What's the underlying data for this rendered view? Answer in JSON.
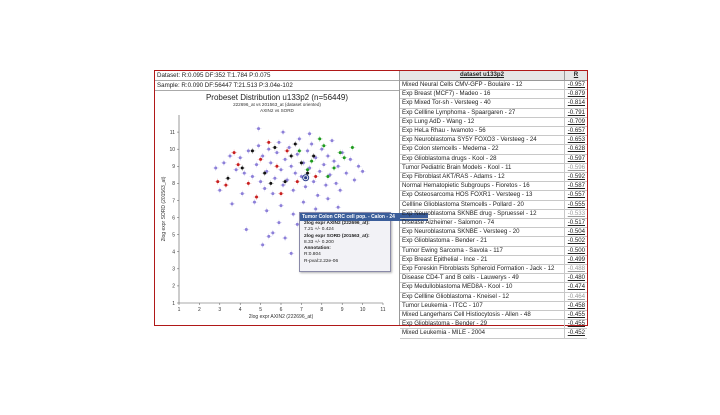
{
  "stats": {
    "dataset": "Dataset: R:0.095 DF:352 T:1.784 P:0.075",
    "sample": "Sample: R:0.090 DF:56447 T:21.513 P:3.04e-102"
  },
  "plot": {
    "title": "Probeset Distribution u133p2 (n=56449)",
    "subtitle1": "222696_at vs 201563_at (dataset oriented)",
    "subtitle2": "AXIN2 vs SORD"
  },
  "chart_data": {
    "type": "scatter",
    "xlabel": "2log expr AXIN2 (222696_at)",
    "ylabel": "2log expr SORD (201563_at)",
    "xlim": [
      1,
      11
    ],
    "ylim": [
      1,
      12
    ],
    "xticks": [
      "1",
      "2",
      "3",
      "4",
      "5",
      "6",
      "7",
      "8",
      "9",
      "10",
      "11"
    ],
    "yticks": [
      "1",
      "2",
      "3",
      "4",
      "5",
      "6",
      "7",
      "8",
      "9",
      "10",
      "11"
    ],
    "colors": {
      "bg": "#8c7fd8",
      "black": "#111111",
      "red": "#c81e1e",
      "green": "#1e9a1e",
      "highlight": "#2b3f8a"
    },
    "points_lavender": [
      [
        3.2,
        9.2
      ],
      [
        3.5,
        9.6
      ],
      [
        3.8,
        8.8
      ],
      [
        4.0,
        9.5
      ],
      [
        4.2,
        8.6
      ],
      [
        4.4,
        9.9
      ],
      [
        4.6,
        8.4
      ],
      [
        4.8,
        9.1
      ],
      [
        4.9,
        10.2
      ],
      [
        5.0,
        8.1
      ],
      [
        5.1,
        9.6
      ],
      [
        5.2,
        7.7
      ],
      [
        5.3,
        8.7
      ],
      [
        5.4,
        10.0
      ],
      [
        5.5,
        9.2
      ],
      [
        5.6,
        7.4
      ],
      [
        5.7,
        8.3
      ],
      [
        5.8,
        9.8
      ],
      [
        5.9,
        10.4
      ],
      [
        6.0,
        8.8
      ],
      [
        6.1,
        7.9
      ],
      [
        6.2,
        9.4
      ],
      [
        6.3,
        8.2
      ],
      [
        6.4,
        10.1
      ],
      [
        6.5,
        9.0
      ],
      [
        6.6,
        7.6
      ],
      [
        6.7,
        8.6
      ],
      [
        6.8,
        9.7
      ],
      [
        6.9,
        10.6
      ],
      [
        7.0,
        8.4
      ],
      [
        7.1,
        9.2
      ],
      [
        7.2,
        7.8
      ],
      [
        7.3,
        9.9
      ],
      [
        7.4,
        8.9
      ],
      [
        7.5,
        10.3
      ],
      [
        7.6,
        8.1
      ],
      [
        7.7,
        9.5
      ],
      [
        7.8,
        7.3
      ],
      [
        7.9,
        8.7
      ],
      [
        8.0,
        10.0
      ],
      [
        8.1,
        9.1
      ],
      [
        8.2,
        7.9
      ],
      [
        8.3,
        9.6
      ],
      [
        8.4,
        8.5
      ],
      [
        8.5,
        10.5
      ],
      [
        8.6,
        9.3
      ],
      [
        8.7,
        8.0
      ],
      [
        8.8,
        9.0
      ],
      [
        8.9,
        7.6
      ],
      [
        9.0,
        9.8
      ],
      [
        9.2,
        8.6
      ],
      [
        9.4,
        9.4
      ],
      [
        9.6,
        8.2
      ],
      [
        9.8,
        9.0
      ],
      [
        10.0,
        8.7
      ],
      [
        3.6,
        6.8
      ],
      [
        4.1,
        7.4
      ],
      [
        4.7,
        6.9
      ],
      [
        5.3,
        6.4
      ],
      [
        6.0,
        6.7
      ],
      [
        6.6,
        6.2
      ],
      [
        7.1,
        6.9
      ],
      [
        7.7,
        6.5
      ],
      [
        8.3,
        7.1
      ],
      [
        3.0,
        7.6
      ],
      [
        2.8,
        8.9
      ],
      [
        4.3,
        5.3
      ],
      [
        5.1,
        4.4
      ],
      [
        5.6,
        5.1
      ],
      [
        6.2,
        4.8
      ],
      [
        6.8,
        5.6
      ],
      [
        5.9,
        5.7
      ],
      [
        6.5,
        3.9
      ],
      [
        4.9,
        11.2
      ],
      [
        6.1,
        11.0
      ],
      [
        7.4,
        10.9
      ],
      [
        5.4,
        4.9
      ],
      [
        7.9,
        6.0
      ],
      [
        8.8,
        6.6
      ]
    ],
    "points_black": [
      [
        4.1,
        8.9
      ],
      [
        4.6,
        9.9
      ],
      [
        5.2,
        8.6
      ],
      [
        5.7,
        10.1
      ],
      [
        6.2,
        8.1
      ],
      [
        6.5,
        9.6
      ],
      [
        7.0,
        9.2
      ],
      [
        7.3,
        8.6
      ],
      [
        3.4,
        8.3
      ],
      [
        6.7,
        10.3
      ],
      [
        5.5,
        8.0
      ],
      [
        7.6,
        9.6
      ]
    ],
    "points_red": [
      [
        2.9,
        8.1
      ],
      [
        3.3,
        7.9
      ],
      [
        3.9,
        9.1
      ],
      [
        4.4,
        8.0
      ],
      [
        5.0,
        9.4
      ],
      [
        5.8,
        9.0
      ],
      [
        6.3,
        9.9
      ],
      [
        6.8,
        8.1
      ],
      [
        7.7,
        8.4
      ],
      [
        5.4,
        10.4
      ],
      [
        4.8,
        7.2
      ],
      [
        6.0,
        7.4
      ],
      [
        3.7,
        9.8
      ]
    ],
    "points_green": [
      [
        6.9,
        9.9
      ],
      [
        7.5,
        9.3
      ],
      [
        8.1,
        10.2
      ],
      [
        8.6,
        8.9
      ],
      [
        9.1,
        9.5
      ],
      [
        8.3,
        8.4
      ],
      [
        9.5,
        10.1
      ],
      [
        7.9,
        10.6
      ],
      [
        8.9,
        9.8
      ],
      [
        7.3,
        8.8
      ]
    ],
    "highlight_point": [
      7.21,
      8.33
    ]
  },
  "tooltip": {
    "header": "Tumor Colon CRC cell pop. - Calon - 24",
    "line1": "2log expr AXIN2 (222696_at):",
    "line2": "7.21 +/- 0.424",
    "line3": "2log expr SORD (201563_at):",
    "line4": "8.33 +/- 0.200",
    "line5": "Annotation:",
    "line6": "R:0.804",
    "line7": "R-pval:2.22e-06"
  },
  "table": {
    "header_dataset": "dataset u133p2",
    "header_r": "R",
    "rows": [
      {
        "name": "Mixed Neural Cells CMV-GFP - Boulaire - 12",
        "r": "-0.957",
        "dim": false
      },
      {
        "name": "Exp Breast (MCF7) - Madeo - 16",
        "r": "-0.879",
        "dim": false
      },
      {
        "name": "Exp Mixed Tor-sh - Versteeg - 40",
        "r": "-0.814",
        "dim": false
      },
      {
        "name": "Exp Cellline Lymphoma - Spaargaren - 27",
        "r": "-0.791",
        "dim": false
      },
      {
        "name": "Exp Lung AdD - Wang - 12",
        "r": "-0.709",
        "dim": false
      },
      {
        "name": "Exp HeLa Rhau - Iwamoto - 56",
        "r": "-0.657",
        "dim": false
      },
      {
        "name": "Exp Neuroblastoma SY5Y FOXO3 - Versteeg - 24",
        "r": "-0.653",
        "dim": false
      },
      {
        "name": "Exp Colon stemcells - Medema - 22",
        "r": "-0.628",
        "dim": false
      },
      {
        "name": "Exp Glioblastoma drugs - Kool - 28",
        "r": "-0.597",
        "dim": false
      },
      {
        "name": "Tumor Pediatric Brain Models - Kool - 11",
        "r": "-0.596",
        "dim": true
      },
      {
        "name": "Exp Fibroblast AKT/RAS - Adams - 12",
        "r": "-0.592",
        "dim": false
      },
      {
        "name": "Normal Hematopietic Subgroups - Fioretos - 16",
        "r": "-0.587",
        "dim": false
      },
      {
        "name": "Exp Osteosarcoma HOS FOXR1 - Versteeg - 13",
        "r": "-0.557",
        "dim": false
      },
      {
        "name": "Cellline Glioblastoma Stemcells - Pollard - 20",
        "r": "-0.555",
        "dim": false
      },
      {
        "name": "Exp Neuroblastoma SKNBE drug - Spruessel - 12",
        "r": "-0.533",
        "dim": true
      },
      {
        "name": "Disease Alzheimer - Salomon - 74",
        "r": "-0.517",
        "dim": false
      },
      {
        "name": "Exp Neuroblastoma SKNBE - Versteeg - 20",
        "r": "-0.504",
        "dim": false
      },
      {
        "name": "Exp Glioblastoma - Bender - 21",
        "r": "-0.502",
        "dim": false
      },
      {
        "name": "Tumor Ewing Sarcoma - Savola - 117",
        "r": "-0.500",
        "dim": false
      },
      {
        "name": "Exp Breast Epithelial - Ince - 21",
        "r": "-0.499",
        "dim": false
      },
      {
        "name": "Exp Foreskin Fibroblasts Spheroid Formation - Jack - 12",
        "r": "-0.488",
        "dim": true
      },
      {
        "name": "Disease CD4-T and B cells - Lauwerys - 49",
        "r": "-0.480",
        "dim": false
      },
      {
        "name": "Exp Medulloblastoma MED8A - Kool - 10",
        "r": "-0.474",
        "dim": false
      },
      {
        "name": "Exp Cellline Glioblastoma - Kneisel - 12",
        "r": "-0.464",
        "dim": true
      },
      {
        "name": "Tumor Leukemia - ITCC - 107",
        "r": "-0.458",
        "dim": false
      },
      {
        "name": "Mixed Langerhans Cell Histiocytosis - Allen - 48",
        "r": "-0.455",
        "dim": false
      },
      {
        "name": "Exp Glioblastoma - Bender - 29",
        "r": "-0.455",
        "dim": false
      },
      {
        "name": "Mixed Leukemia - MILE - 2004",
        "r": "-0.452",
        "dim": false
      }
    ]
  }
}
